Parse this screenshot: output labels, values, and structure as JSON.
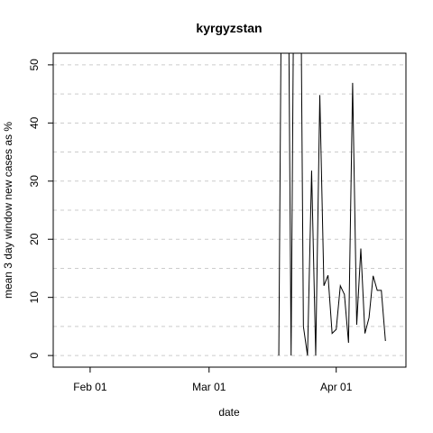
{
  "chart_data": {
    "type": "line",
    "title": "kyrgyzstan",
    "xlabel": "date",
    "ylabel": "mean  3  day window new cases as %",
    "x_ticks": [
      {
        "date": "2020-02-01",
        "label": "Feb 01"
      },
      {
        "date": "2020-03-01",
        "label": "Mar 01"
      },
      {
        "date": "2020-04-01",
        "label": "Apr 01"
      }
    ],
    "y_ticks": [
      0,
      10,
      20,
      30,
      40,
      50
    ],
    "xlim": [
      "2020-01-23",
      "2020-04-18"
    ],
    "ylim": [
      -2,
      52
    ],
    "grid": "horizontal dashed",
    "series": [
      {
        "x": [
          "2020-03-18",
          "2020-03-19",
          "2020-03-20",
          "2020-03-21",
          "2020-03-22",
          "2020-03-23",
          "2020-03-24",
          "2020-03-25",
          "2020-03-26",
          "2020-03-27",
          "2020-03-28",
          "2020-03-29",
          "2020-03-30",
          "2020-03-31",
          "2020-04-01",
          "2020-04-02",
          "2020-04-03",
          "2020-04-04",
          "2020-04-05",
          "2020-04-06",
          "2020-04-07",
          "2020-04-08",
          "2020-04-09",
          "2020-04-10",
          "2020-04-11",
          "2020-04-12",
          "2020-04-13",
          "2020-04-14"
        ],
        "y": [
          0,
          100,
          100,
          0,
          100,
          100,
          5,
          0,
          31.8,
          0,
          44.8,
          12,
          13.8,
          3.8,
          4.5,
          12,
          10.5,
          2.2,
          46.9,
          5.3,
          18.4,
          3.8,
          6.5,
          13.7,
          11.2,
          11.2,
          2.5,
          null
        ]
      }
    ]
  }
}
